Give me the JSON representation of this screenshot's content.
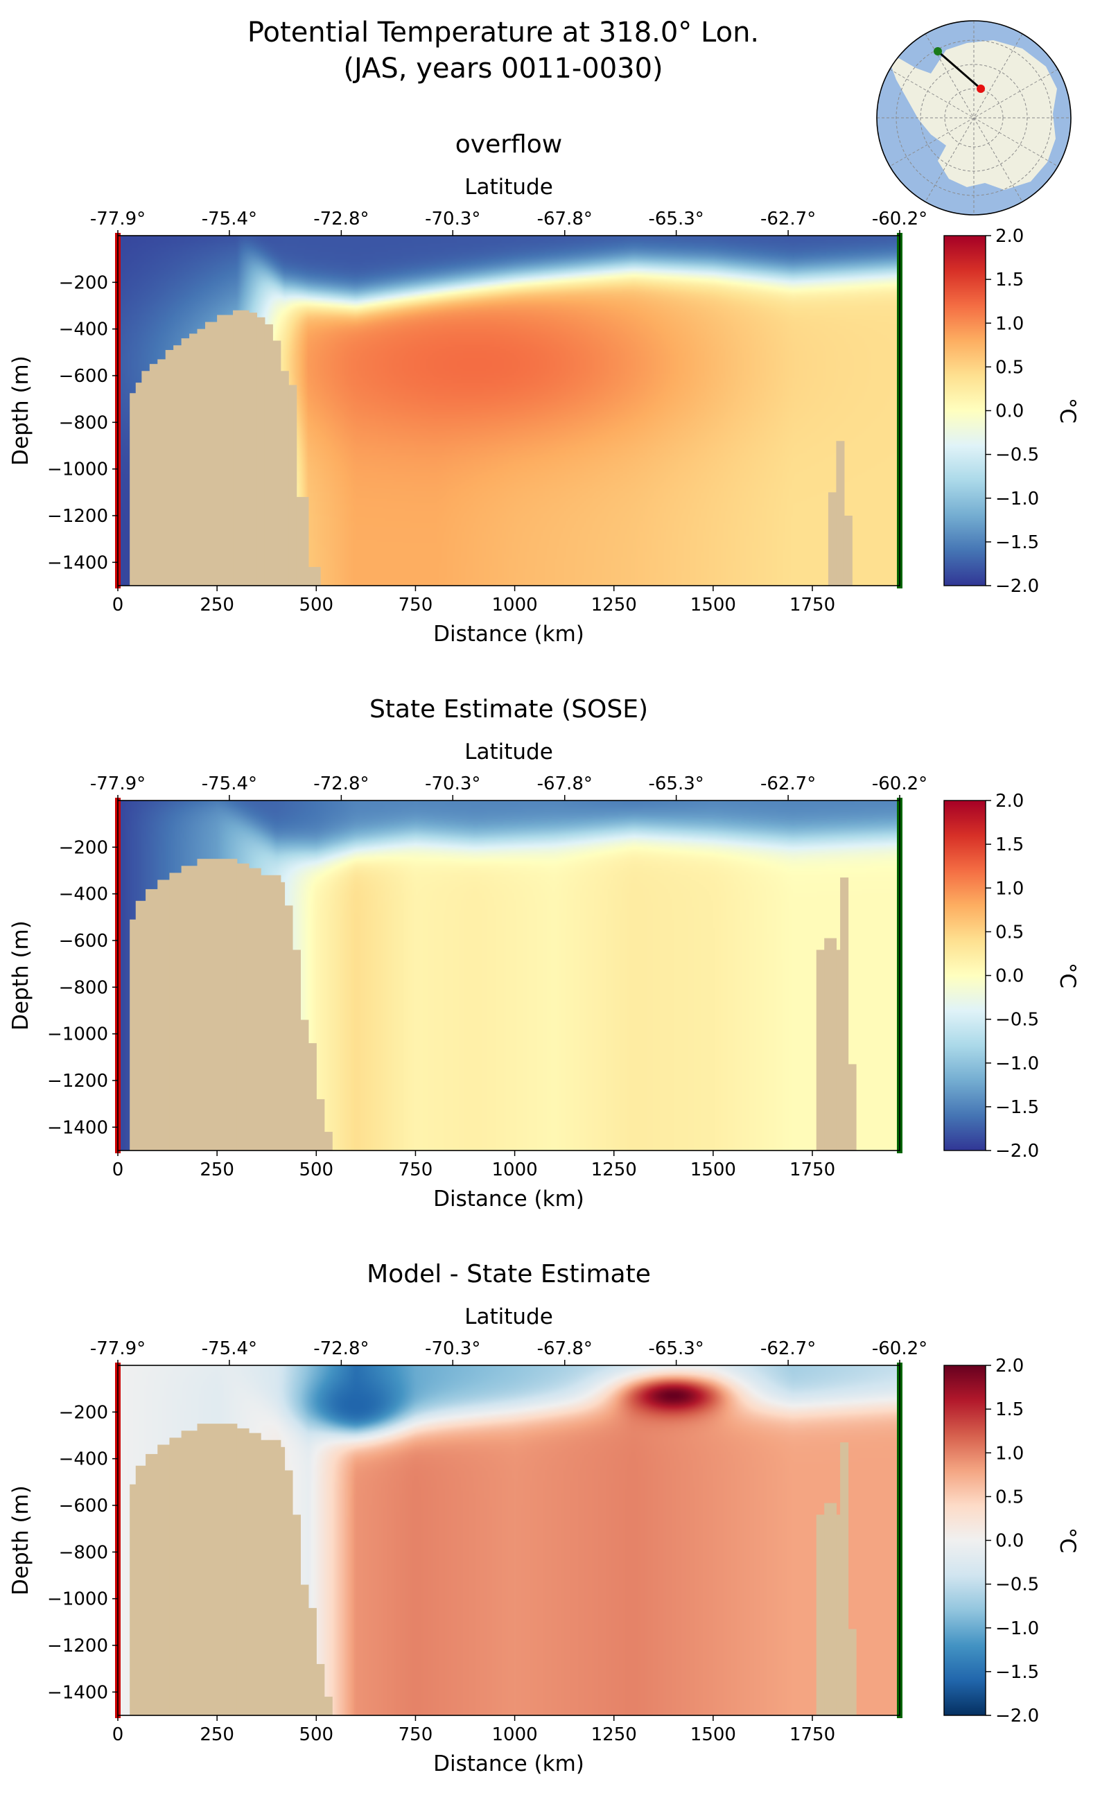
{
  "figure": {
    "title_line1": "Potential Temperature at 318.0° Lon.",
    "title_line2": "(JAS, years 0011-0030)"
  },
  "colors": {
    "land": "#d6c09b",
    "left_marker": "#cc0000",
    "right_marker": "#006400",
    "map_ocean": "#9bbbe3",
    "map_land": "#efefe0",
    "map_grid": "#8a8a8a",
    "map_point_end": "#1a7a1a",
    "map_point_start": "#e61010",
    "cmap_rdylbu_r": [
      "#313695",
      "#4575b4",
      "#74add1",
      "#abd9e9",
      "#e0f3f8",
      "#ffffbf",
      "#fee090",
      "#fdae61",
      "#f46d43",
      "#d73027",
      "#a50026"
    ],
    "cmap_rdbu_r": [
      "#053061",
      "#2166ac",
      "#4393c3",
      "#92c5de",
      "#d1e5f0",
      "#f0f0f0",
      "#fddbc7",
      "#f4a582",
      "#d6604d",
      "#b2182b",
      "#67001f"
    ]
  },
  "inset_map": {
    "projection": "south-polar-stereographic",
    "section_start": {
      "lat": -77.9,
      "lon": 318.0
    },
    "section_end": {
      "lat": -60.2,
      "lon": 318.0
    }
  },
  "chart_data": [
    {
      "type": "heatmap",
      "title": "overflow",
      "xlabel": "Distance (km)",
      "ylabel": "Depth (m)",
      "top_xlabel": "Latitude",
      "colorbar_label": "°C",
      "colormap": "RdYlBu_r",
      "xlim": [
        0,
        1970
      ],
      "ylim": [
        -1500,
        0
      ],
      "clim": [
        -2.0,
        2.0
      ],
      "x_ticks": [
        0,
        250,
        500,
        750,
        1000,
        1250,
        1500,
        1750
      ],
      "x_tick_labels": [
        "0",
        "250",
        "500",
        "750",
        "1000",
        "1250",
        "1500",
        "1750"
      ],
      "y_ticks": [
        -200,
        -400,
        -600,
        -800,
        -1000,
        -1200,
        -1400
      ],
      "y_tick_labels": [
        "−200",
        "−400",
        "−600",
        "−800",
        "−1000",
        "−1200",
        "−1400"
      ],
      "top_ticks": [
        0,
        281,
        563,
        844,
        1126,
        1407,
        1689,
        1970
      ],
      "top_tick_labels": [
        "-77.9°",
        "-75.4°",
        "-72.8°",
        "-70.3°",
        "-67.8°",
        "-65.3°",
        "-62.7°",
        "-60.2°"
      ],
      "cbar_ticks": [
        2.0,
        1.5,
        1.0,
        0.5,
        0.0,
        -0.5,
        -1.0,
        -1.5,
        -2.0
      ],
      "cbar_tick_labels": [
        "2.0",
        "1.5",
        "1.0",
        "0.5",
        "0.0",
        "−0.5",
        "−1.0",
        "−1.5",
        "−2.0"
      ],
      "field_profile": [
        {
          "x": 0,
          "thermo_depth": 0,
          "surface": -1.9,
          "deep": -1.9
        },
        {
          "x": 300,
          "thermo_depth": 0,
          "surface": -1.9,
          "deep": -1.8
        },
        {
          "x": 420,
          "thermo_depth": 230,
          "surface": -1.8,
          "deep": -0.3
        },
        {
          "x": 480,
          "thermo_depth": 270,
          "surface": -1.8,
          "deep": 0.6
        },
        {
          "x": 600,
          "thermo_depth": 300,
          "surface": -1.8,
          "deep": 0.8
        },
        {
          "x": 800,
          "thermo_depth": 250,
          "surface": -1.8,
          "deep": 0.8
        },
        {
          "x": 1000,
          "thermo_depth": 200,
          "surface": -1.8,
          "deep": 0.7
        },
        {
          "x": 1300,
          "thermo_depth": 140,
          "surface": -1.8,
          "deep": 0.6
        },
        {
          "x": 1500,
          "thermo_depth": 150,
          "surface": -1.8,
          "deep": 0.5
        },
        {
          "x": 1700,
          "thermo_depth": 180,
          "surface": -1.8,
          "deep": 0.4
        },
        {
          "x": 1970,
          "thermo_depth": 150,
          "surface": -1.8,
          "deep": 0.4
        }
      ],
      "core": {
        "x": 900,
        "depth": 550,
        "rx": 520,
        "ry": 350,
        "value": 1.2
      },
      "bathymetry": [
        {
          "x0": 0,
          "x1": 30,
          "depth": 1500
        },
        {
          "x0": 30,
          "x1": 45,
          "depth": 675
        },
        {
          "x0": 45,
          "x1": 60,
          "depth": 630
        },
        {
          "x0": 60,
          "x1": 80,
          "depth": 580
        },
        {
          "x0": 80,
          "x1": 100,
          "depth": 550
        },
        {
          "x0": 100,
          "x1": 120,
          "depth": 530
        },
        {
          "x0": 120,
          "x1": 140,
          "depth": 490
        },
        {
          "x0": 140,
          "x1": 160,
          "depth": 470
        },
        {
          "x0": 160,
          "x1": 180,
          "depth": 440
        },
        {
          "x0": 180,
          "x1": 200,
          "depth": 420
        },
        {
          "x0": 200,
          "x1": 220,
          "depth": 400
        },
        {
          "x0": 220,
          "x1": 250,
          "depth": 370
        },
        {
          "x0": 250,
          "x1": 290,
          "depth": 340
        },
        {
          "x0": 290,
          "x1": 330,
          "depth": 320
        },
        {
          "x0": 330,
          "x1": 350,
          "depth": 330
        },
        {
          "x0": 350,
          "x1": 370,
          "depth": 350
        },
        {
          "x0": 370,
          "x1": 390,
          "depth": 380
        },
        {
          "x0": 390,
          "x1": 410,
          "depth": 450
        },
        {
          "x0": 410,
          "x1": 430,
          "depth": 580
        },
        {
          "x0": 430,
          "x1": 450,
          "depth": 640
        },
        {
          "x0": 450,
          "x1": 480,
          "depth": 1120
        },
        {
          "x0": 480,
          "x1": 510,
          "depth": 1420
        },
        {
          "x0": 1790,
          "x1": 1810,
          "depth": 1100
        },
        {
          "x0": 1810,
          "x1": 1830,
          "depth": 880
        },
        {
          "x0": 1830,
          "x1": 1850,
          "depth": 1200
        }
      ]
    },
    {
      "type": "heatmap",
      "title": "State Estimate (SOSE)",
      "xlabel": "Distance (km)",
      "ylabel": "Depth (m)",
      "top_xlabel": "Latitude",
      "colorbar_label": "°C",
      "colormap": "RdYlBu_r",
      "xlim": [
        0,
        1970
      ],
      "ylim": [
        -1500,
        0
      ],
      "clim": [
        -2.0,
        2.0
      ],
      "x_ticks": [
        0,
        250,
        500,
        750,
        1000,
        1250,
        1500,
        1750
      ],
      "x_tick_labels": [
        "0",
        "250",
        "500",
        "750",
        "1000",
        "1250",
        "1500",
        "1750"
      ],
      "y_ticks": [
        -200,
        -400,
        -600,
        -800,
        -1000,
        -1200,
        -1400
      ],
      "y_tick_labels": [
        "−200",
        "−400",
        "−600",
        "−800",
        "−1000",
        "−1200",
        "−1400"
      ],
      "top_ticks": [
        0,
        281,
        563,
        844,
        1126,
        1407,
        1689,
        1970
      ],
      "top_tick_labels": [
        "-77.9°",
        "-75.4°",
        "-72.8°",
        "-70.3°",
        "-67.8°",
        "-65.3°",
        "-62.7°",
        "-60.2°"
      ],
      "cbar_ticks": [
        2.0,
        1.5,
        1.0,
        0.5,
        0.0,
        -0.5,
        -1.0,
        -1.5,
        -2.0
      ],
      "cbar_tick_labels": [
        "2.0",
        "1.5",
        "1.0",
        "0.5",
        "0.0",
        "−0.5",
        "−1.0",
        "−1.5",
        "−2.0"
      ],
      "field_profile": [
        {
          "x": 0,
          "thermo_depth": 0,
          "surface": -1.9,
          "deep": -1.9
        },
        {
          "x": 250,
          "thermo_depth": 0,
          "surface": -1.8,
          "deep": -1.3
        },
        {
          "x": 400,
          "thermo_depth": 200,
          "surface": -1.7,
          "deep": -0.5
        },
        {
          "x": 500,
          "thermo_depth": 230,
          "surface": -1.6,
          "deep": 0.1
        },
        {
          "x": 600,
          "thermo_depth": 200,
          "surface": -1.5,
          "deep": 0.4
        },
        {
          "x": 750,
          "thermo_depth": 160,
          "surface": -1.5,
          "deep": 0.15
        },
        {
          "x": 900,
          "thermo_depth": 180,
          "surface": -1.5,
          "deep": 0.2
        },
        {
          "x": 1100,
          "thermo_depth": 160,
          "surface": -1.5,
          "deep": 0.1
        },
        {
          "x": 1300,
          "thermo_depth": 130,
          "surface": -1.6,
          "deep": 0.25
        },
        {
          "x": 1500,
          "thermo_depth": 150,
          "surface": -1.5,
          "deep": 0.2
        },
        {
          "x": 1700,
          "thermo_depth": 170,
          "surface": -1.5,
          "deep": 0.05
        },
        {
          "x": 1970,
          "thermo_depth": 150,
          "surface": -1.5,
          "deep": 0.05
        }
      ],
      "bathymetry": [
        {
          "x0": 0,
          "x1": 30,
          "depth": 1500
        },
        {
          "x0": 30,
          "x1": 45,
          "depth": 510
        },
        {
          "x0": 45,
          "x1": 70,
          "depth": 430
        },
        {
          "x0": 70,
          "x1": 100,
          "depth": 380
        },
        {
          "x0": 100,
          "x1": 130,
          "depth": 340
        },
        {
          "x0": 130,
          "x1": 160,
          "depth": 310
        },
        {
          "x0": 160,
          "x1": 200,
          "depth": 280
        },
        {
          "x0": 200,
          "x1": 300,
          "depth": 250
        },
        {
          "x0": 300,
          "x1": 330,
          "depth": 270
        },
        {
          "x0": 330,
          "x1": 360,
          "depth": 290
        },
        {
          "x0": 360,
          "x1": 410,
          "depth": 320
        },
        {
          "x0": 410,
          "x1": 420,
          "depth": 350
        },
        {
          "x0": 420,
          "x1": 440,
          "depth": 450
        },
        {
          "x0": 440,
          "x1": 460,
          "depth": 640
        },
        {
          "x0": 460,
          "x1": 480,
          "depth": 940
        },
        {
          "x0": 480,
          "x1": 500,
          "depth": 1040
        },
        {
          "x0": 500,
          "x1": 520,
          "depth": 1280
        },
        {
          "x0": 520,
          "x1": 540,
          "depth": 1420
        },
        {
          "x0": 1760,
          "x1": 1780,
          "depth": 640
        },
        {
          "x0": 1780,
          "x1": 1810,
          "depth": 590
        },
        {
          "x0": 1810,
          "x1": 1820,
          "depth": 640
        },
        {
          "x0": 1820,
          "x1": 1840,
          "depth": 330
        },
        {
          "x0": 1840,
          "x1": 1860,
          "depth": 1130
        },
        {
          "x0": 1860,
          "x1": 1880,
          "depth": 1500
        }
      ]
    },
    {
      "type": "heatmap",
      "title": "Model - State Estimate",
      "xlabel": "Distance (km)",
      "ylabel": "Depth (m)",
      "top_xlabel": "Latitude",
      "colorbar_label": "°C",
      "colormap": "RdBu_r",
      "xlim": [
        0,
        1970
      ],
      "ylim": [
        -1500,
        0
      ],
      "clim": [
        -2.0,
        2.0
      ],
      "x_ticks": [
        0,
        250,
        500,
        750,
        1000,
        1250,
        1500,
        1750
      ],
      "x_tick_labels": [
        "0",
        "250",
        "500",
        "750",
        "1000",
        "1250",
        "1500",
        "1750"
      ],
      "y_ticks": [
        -200,
        -400,
        -600,
        -800,
        -1000,
        -1200,
        -1400
      ],
      "y_tick_labels": [
        "−200",
        "−400",
        "−600",
        "−800",
        "−1000",
        "−1200",
        "−1400"
      ],
      "top_ticks": [
        0,
        281,
        563,
        844,
        1126,
        1407,
        1689,
        1970
      ],
      "top_tick_labels": [
        "-77.9°",
        "-75.4°",
        "-72.8°",
        "-70.3°",
        "-67.8°",
        "-65.3°",
        "-62.7°",
        "-60.2°"
      ],
      "cbar_ticks": [
        2.0,
        1.5,
        1.0,
        0.5,
        0.0,
        -0.5,
        -1.0,
        -1.5,
        -2.0
      ],
      "cbar_tick_labels": [
        "2.0",
        "1.5",
        "1.0",
        "0.5",
        "0.0",
        "−0.5",
        "−1.0",
        "−1.5",
        "−2.0"
      ],
      "field_profile": [
        {
          "x": 0,
          "thermo_depth": 0,
          "surface": 0.0,
          "deep": 0.0
        },
        {
          "x": 250,
          "thermo_depth": 0,
          "surface": -0.1,
          "deep": -0.2
        },
        {
          "x": 400,
          "thermo_depth": 200,
          "surface": -0.3,
          "deep": 0.1
        },
        {
          "x": 480,
          "thermo_depth": 250,
          "surface": -0.8,
          "deep": -0.1
        },
        {
          "x": 600,
          "thermo_depth": 280,
          "surface": -1.5,
          "deep": 0.9
        },
        {
          "x": 750,
          "thermo_depth": 240,
          "surface": -1.0,
          "deep": 1.0
        },
        {
          "x": 1000,
          "thermo_depth": 200,
          "surface": -0.8,
          "deep": 0.9
        },
        {
          "x": 1300,
          "thermo_depth": 150,
          "surface": -0.5,
          "deep": 1.0
        },
        {
          "x": 1500,
          "thermo_depth": 170,
          "surface": -0.3,
          "deep": 0.9
        },
        {
          "x": 1700,
          "thermo_depth": 180,
          "surface": -0.7,
          "deep": 0.8
        },
        {
          "x": 1970,
          "thermo_depth": 160,
          "surface": -0.5,
          "deep": 0.8
        }
      ],
      "anomalies": [
        {
          "x": 1400,
          "depth": 130,
          "rx": 140,
          "ry": 90,
          "value": 2.0
        },
        {
          "x": 600,
          "depth": 170,
          "rx": 110,
          "ry": 110,
          "value": -1.6
        }
      ],
      "bathymetry": [
        {
          "x0": 0,
          "x1": 30,
          "depth": 1500
        },
        {
          "x0": 30,
          "x1": 45,
          "depth": 510
        },
        {
          "x0": 45,
          "x1": 70,
          "depth": 430
        },
        {
          "x0": 70,
          "x1": 100,
          "depth": 380
        },
        {
          "x0": 100,
          "x1": 130,
          "depth": 340
        },
        {
          "x0": 130,
          "x1": 160,
          "depth": 310
        },
        {
          "x0": 160,
          "x1": 200,
          "depth": 280
        },
        {
          "x0": 200,
          "x1": 300,
          "depth": 250
        },
        {
          "x0": 300,
          "x1": 330,
          "depth": 270
        },
        {
          "x0": 330,
          "x1": 360,
          "depth": 290
        },
        {
          "x0": 360,
          "x1": 410,
          "depth": 320
        },
        {
          "x0": 410,
          "x1": 420,
          "depth": 350
        },
        {
          "x0": 420,
          "x1": 440,
          "depth": 450
        },
        {
          "x0": 440,
          "x1": 460,
          "depth": 640
        },
        {
          "x0": 460,
          "x1": 480,
          "depth": 940
        },
        {
          "x0": 480,
          "x1": 500,
          "depth": 1040
        },
        {
          "x0": 500,
          "x1": 520,
          "depth": 1280
        },
        {
          "x0": 520,
          "x1": 540,
          "depth": 1420
        },
        {
          "x0": 1760,
          "x1": 1780,
          "depth": 640
        },
        {
          "x0": 1780,
          "x1": 1810,
          "depth": 590
        },
        {
          "x0": 1810,
          "x1": 1820,
          "depth": 640
        },
        {
          "x0": 1820,
          "x1": 1840,
          "depth": 330
        },
        {
          "x0": 1840,
          "x1": 1860,
          "depth": 1130
        },
        {
          "x0": 1860,
          "x1": 1880,
          "depth": 1500
        }
      ]
    }
  ]
}
